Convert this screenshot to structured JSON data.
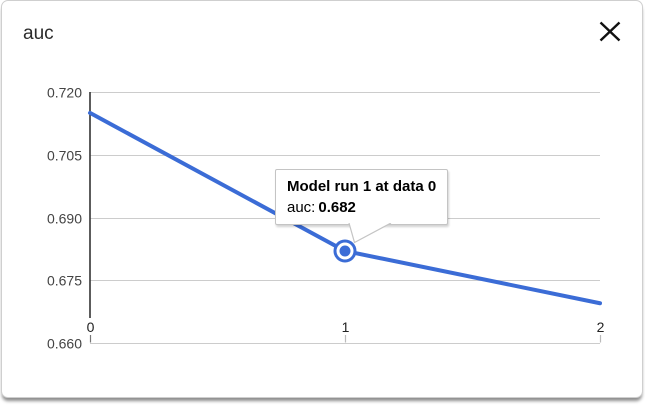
{
  "modal": {
    "title": "auc",
    "close_icon": "close-x"
  },
  "chart_data": {
    "type": "line",
    "title": "auc",
    "x": [
      0,
      1,
      2
    ],
    "series": [
      {
        "name": "Model run 1",
        "values": [
          0.715,
          0.682,
          0.6695
        ]
      }
    ],
    "xticks": [
      "0",
      "1",
      "2"
    ],
    "yticks": [
      "0.720",
      "0.705",
      "0.690",
      "0.675",
      "0.660"
    ],
    "xlim": [
      0,
      2
    ],
    "ylim": [
      0.66,
      0.72
    ],
    "grid": "horizontal",
    "legend": "none",
    "line_color": "#3b6cd6",
    "grid_color": "#cccccc",
    "axis_line_color": "#333333",
    "y_label_color": "#444444",
    "x_label_color": "#222222",
    "selected_point": {
      "x": 1,
      "value": 0.682
    },
    "tooltip": {
      "title": "Model run 1 at data 0",
      "label": "auc:",
      "value": "0.682"
    }
  }
}
